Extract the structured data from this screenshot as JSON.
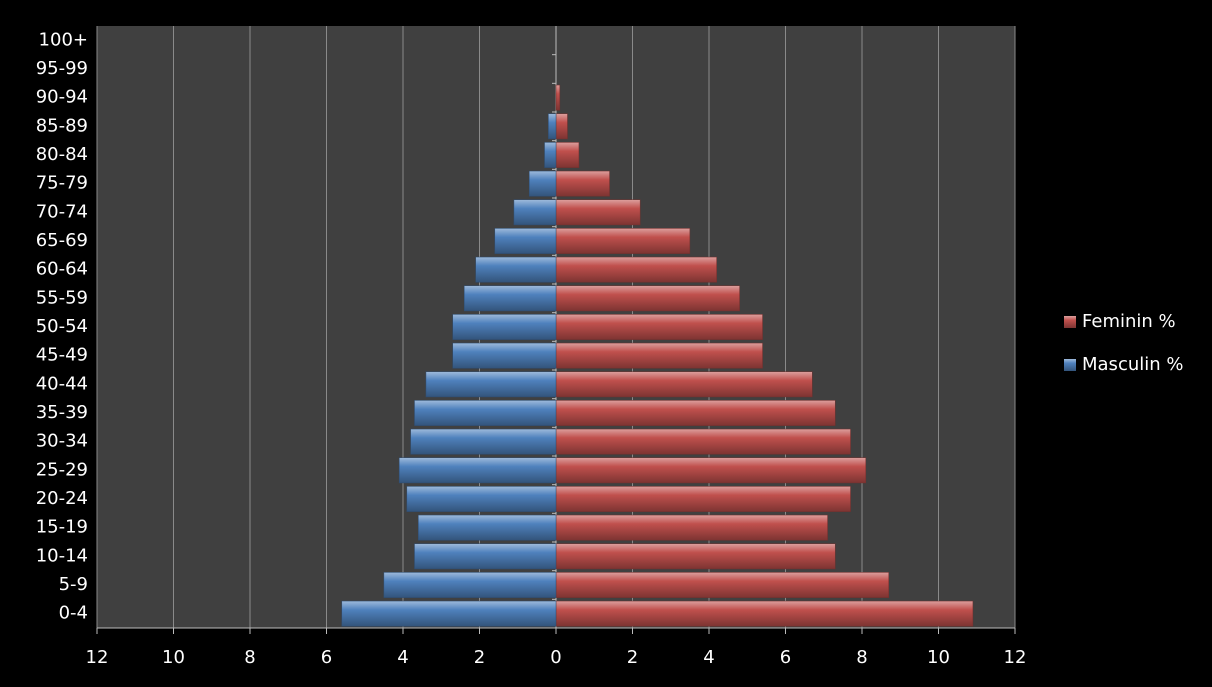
{
  "chart_data": {
    "type": "bar",
    "categories": [
      "0-4",
      "5-9",
      "10-14",
      "15-19",
      "20-24",
      "25-29",
      "30-34",
      "35-39",
      "40-44",
      "45-49",
      "50-54",
      "55-59",
      "60-64",
      "65-69",
      "70-74",
      "75-79",
      "80-84",
      "85-89",
      "90-94",
      "95-99",
      "100+"
    ],
    "series": [
      {
        "name": "Feminin %",
        "color": "#c0504d",
        "values": [
          10.9,
          8.7,
          7.3,
          7.1,
          7.7,
          8.1,
          7.7,
          7.3,
          6.7,
          5.4,
          5.4,
          4.8,
          4.2,
          3.5,
          2.2,
          1.4,
          0.6,
          0.3,
          0.1,
          0,
          0
        ]
      },
      {
        "name": "Masculin %",
        "color": "#4f81bd",
        "values": [
          -5.6,
          -4.5,
          -3.7,
          -3.6,
          -3.9,
          -4.1,
          -3.8,
          -3.7,
          -3.4,
          -2.7,
          -2.7,
          -2.4,
          -2.1,
          -1.6,
          -1.1,
          -0.7,
          -0.3,
          -0.2,
          0,
          0,
          0
        ]
      }
    ],
    "xlim": [
      -12,
      12
    ],
    "xticks": [
      {
        "value": -12,
        "label": "12"
      },
      {
        "value": -10,
        "label": "10"
      },
      {
        "value": -8,
        "label": "8"
      },
      {
        "value": -6,
        "label": "6"
      },
      {
        "value": -4,
        "label": "4"
      },
      {
        "value": -2,
        "label": "2"
      },
      0,
      2,
      4,
      6,
      8,
      10,
      12
    ],
    "grid": true,
    "legend": "right"
  }
}
